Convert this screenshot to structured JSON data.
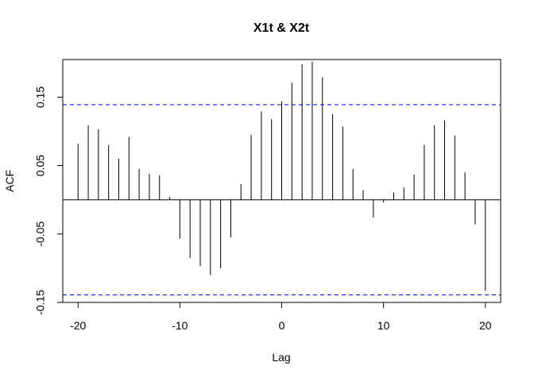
{
  "chart_data": {
    "type": "bar",
    "title": "X1t & X2t",
    "xlabel": "Lag",
    "ylabel": "ACF",
    "x": [
      -20,
      -19,
      -18,
      -17,
      -16,
      -15,
      -14,
      -13,
      -12,
      -11,
      -10,
      -9,
      -8,
      -7,
      -6,
      -5,
      -4,
      -3,
      -2,
      -1,
      0,
      1,
      2,
      3,
      4,
      5,
      6,
      7,
      8,
      9,
      10,
      11,
      12,
      13,
      14,
      15,
      16,
      17,
      18,
      19,
      20
    ],
    "values": [
      0.082,
      0.109,
      0.103,
      0.08,
      0.06,
      0.092,
      0.045,
      0.038,
      0.036,
      0.004,
      -0.057,
      -0.085,
      -0.097,
      -0.11,
      -0.1,
      -0.055,
      0.023,
      0.095,
      0.129,
      0.118,
      0.144,
      0.171,
      0.198,
      0.202,
      0.179,
      0.125,
      0.107,
      0.045,
      0.014,
      -0.026,
      -0.004,
      0.011,
      0.018,
      0.037,
      0.08,
      0.109,
      0.116,
      0.094,
      0.04,
      -0.036,
      -0.133
    ],
    "confidence_band": 0.139,
    "xlim": [
      -21.5,
      21.5
    ],
    "ylim": [
      -0.15,
      0.205
    ],
    "xticks": [
      -20,
      -10,
      0,
      10,
      20
    ],
    "xtick_labels": [
      "-20",
      "-10",
      "0",
      "10",
      "20"
    ],
    "yticks": [
      -0.15,
      -0.05,
      0.05,
      0.15
    ],
    "ytick_labels": [
      "-0.15",
      "-0.05",
      "0.05",
      "0.15"
    ],
    "grid": false,
    "colors": {
      "bars": "#000000",
      "band": "#0000ff",
      "zero_line": "#000000"
    }
  }
}
